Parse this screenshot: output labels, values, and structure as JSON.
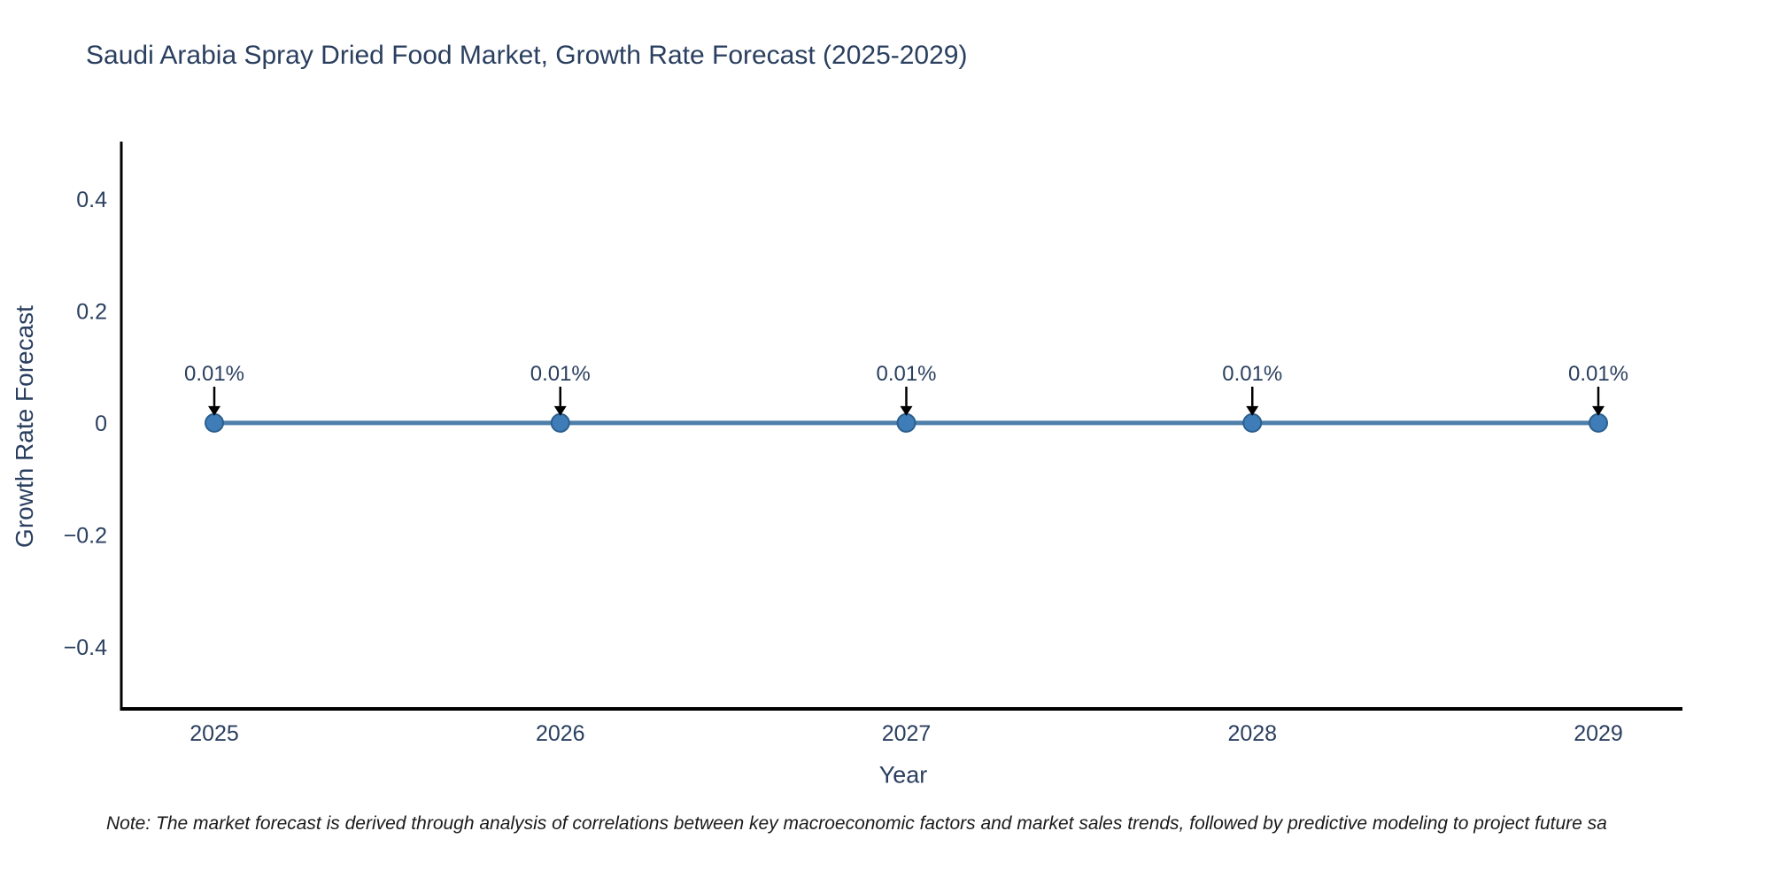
{
  "title": "Saudi Arabia Spray Dried Food Market, Growth Rate Forecast (2025-2029)",
  "note": "Note: The market forecast is derived through analysis of correlations between key macroeconomic factors and market sales trends, followed by predictive modeling to project future sa",
  "chart_data": {
    "type": "line",
    "title": "Saudi Arabia Spray Dried Food Market, Growth Rate Forecast (2025-2029)",
    "xlabel": "Year",
    "ylabel": "Growth Rate Forecast",
    "categories": [
      "2025",
      "2026",
      "2027",
      "2028",
      "2029"
    ],
    "values_percent": [
      0.01,
      0.01,
      0.01,
      0.01,
      0.01
    ],
    "point_labels": [
      "0.01%",
      "0.01%",
      "0.01%",
      "0.01%",
      "0.01%"
    ],
    "unit": "%",
    "ylim": [
      -0.511,
      0.503
    ],
    "yticks": {
      "values": [
        0.4,
        0.2,
        0,
        -0.2,
        -0.4
      ],
      "labels": [
        "0.4",
        "0.2",
        "0",
        "−0.2",
        "−0.4"
      ]
    },
    "grid": false,
    "legend": "none",
    "annotation_style": "down-arrow-to-point",
    "colors": {
      "line": "#4e7fab",
      "marker_fill": "#3f7db8",
      "marker_edge": "#2b5f8e",
      "arrow": "#000000",
      "text": "#2a3f5f",
      "axis": "#000000",
      "note_text": "#1a1a1a",
      "background": "#ffffff"
    }
  }
}
